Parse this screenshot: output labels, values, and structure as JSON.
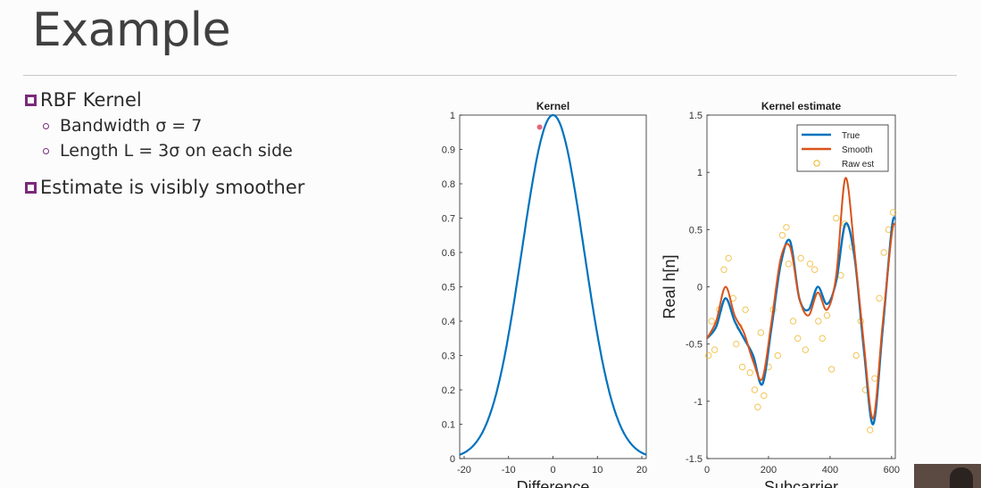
{
  "slide": {
    "title": "Example",
    "bullet1": "RBF Kernel",
    "sub1": "Bandwidth σ = 7",
    "sub2": "Length L = 3σ on each side",
    "bullet2": "Estimate is visibly smoother"
  },
  "colors": {
    "blue": "#0072bd",
    "orange": "#d95319",
    "yellow": "#edb120"
  },
  "chart_data": [
    {
      "type": "line",
      "title": "Kernel",
      "xlabel": "Difference",
      "xlim": [
        -21,
        21
      ],
      "ylim": [
        0,
        1
      ],
      "xticks": [
        "-20",
        "-10",
        "0",
        "10",
        "20"
      ],
      "yticks": [
        "0",
        "0.1",
        "0.2",
        "0.3",
        "0.4",
        "0.5",
        "0.6",
        "0.7",
        "0.8",
        "0.9",
        "1"
      ],
      "series": [
        {
          "function": "exp(-x^2/(2*7^2))"
        }
      ]
    },
    {
      "type": "line",
      "title": "Kernel estimate",
      "xlabel": "Subcarrier",
      "ylabel": "Real h[n]",
      "xlim": [
        0,
        612
      ],
      "ylim": [
        -1.5,
        1.5
      ],
      "xticks": [
        "0",
        "200",
        "400",
        "600"
      ],
      "yticks": [
        "1.5",
        "1",
        "0.5",
        "0",
        "-0.5",
        "-1",
        "-1.5"
      ],
      "legend": [
        "True",
        "Smooth",
        "Raw est"
      ],
      "series": [
        {
          "name": "True",
          "x": [
            0,
            30,
            60,
            90,
            120,
            150,
            180,
            210,
            240,
            270,
            300,
            330,
            360,
            390,
            420,
            450,
            480,
            510,
            540,
            570,
            600,
            612
          ],
          "y": [
            -0.45,
            -0.35,
            -0.1,
            -0.3,
            -0.45,
            -0.6,
            -0.85,
            -0.35,
            0.2,
            0.4,
            -0.1,
            -0.2,
            0.0,
            -0.15,
            0.05,
            0.55,
            0.25,
            -0.55,
            -1.2,
            -0.4,
            0.5,
            0.6
          ]
        },
        {
          "name": "Smooth",
          "x": [
            0,
            30,
            60,
            90,
            120,
            150,
            180,
            210,
            240,
            270,
            300,
            330,
            360,
            390,
            420,
            450,
            480,
            510,
            540,
            570,
            600,
            612
          ],
          "y": [
            -0.45,
            -0.3,
            0.0,
            -0.25,
            -0.4,
            -0.65,
            -0.8,
            -0.3,
            0.25,
            0.35,
            -0.1,
            -0.25,
            -0.05,
            -0.2,
            0.1,
            0.95,
            0.3,
            -0.5,
            -1.15,
            -0.35,
            0.45,
            0.55
          ]
        },
        {
          "name": "Raw est",
          "x": [
            5,
            15,
            25,
            40,
            55,
            70,
            85,
            95,
            105,
            115,
            125,
            140,
            155,
            165,
            175,
            185,
            200,
            215,
            230,
            245,
            258,
            265,
            280,
            295,
            305,
            320,
            335,
            350,
            362,
            375,
            390,
            405,
            420,
            435,
            448,
            460,
            472,
            485,
            500,
            515,
            530,
            545,
            560,
            575,
            590,
            605
          ],
          "y": [
            -0.6,
            -0.3,
            -0.55,
            -0.2,
            0.15,
            0.25,
            -0.1,
            -0.5,
            -0.35,
            -0.7,
            -0.2,
            -0.75,
            -0.9,
            -1.05,
            -0.4,
            -0.95,
            -0.7,
            -0.2,
            -0.6,
            0.45,
            0.52,
            0.2,
            -0.3,
            -0.45,
            0.25,
            -0.55,
            0.2,
            0.15,
            -0.3,
            -0.45,
            -0.25,
            -0.72,
            0.6,
            0.1,
            0.55,
            1.1,
            0.35,
            -0.6,
            -0.3,
            -0.9,
            -1.25,
            -0.8,
            -0.1,
            0.3,
            0.5,
            0.65
          ]
        }
      ]
    }
  ]
}
